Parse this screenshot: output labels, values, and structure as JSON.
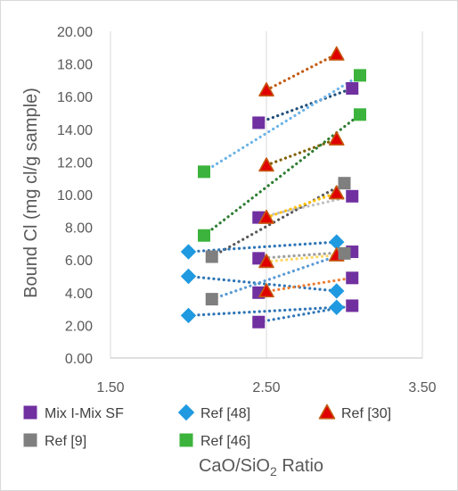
{
  "chart_data": {
    "type": "scatter",
    "title": "",
    "xlabel": "CaO/SiO",
    "xlabel_subscript": "2",
    "xlabel_suffix": " Ratio",
    "ylabel": "Bound Cl (mg cl/g sample)",
    "xlim": [
      1.5,
      3.5
    ],
    "ylim": [
      0,
      20
    ],
    "x_ticks": [
      "1.50",
      "2.50",
      "3.50"
    ],
    "y_ticks": [
      "0.00",
      "2.00",
      "4.00",
      "6.00",
      "8.00",
      "10.00",
      "12.00",
      "14.00",
      "16.00",
      "18.00",
      "20.00"
    ],
    "grid": "vertical",
    "legend_position": "bottom",
    "series": [
      {
        "name": "Mix I-Mix SF",
        "marker": "square",
        "color": "#7030a0",
        "points": [
          [
            2.45,
            14.4
          ],
          [
            2.45,
            8.6
          ],
          [
            2.45,
            6.1
          ],
          [
            2.45,
            4.0
          ],
          [
            2.45,
            2.2
          ],
          [
            3.05,
            16.5
          ],
          [
            3.05,
            9.9
          ],
          [
            3.05,
            6.5
          ],
          [
            3.05,
            4.9
          ],
          [
            3.05,
            3.2
          ]
        ]
      },
      {
        "name": "Ref [48]",
        "marker": "diamond",
        "color": "#1f9ae0",
        "points": [
          [
            2.0,
            6.5
          ],
          [
            2.0,
            5.0
          ],
          [
            2.0,
            2.6
          ],
          [
            2.95,
            7.1
          ],
          [
            2.95,
            4.1
          ],
          [
            2.95,
            3.1
          ]
        ]
      },
      {
        "name": "Ref [30]",
        "marker": "triangle",
        "color": "#e00000",
        "edge_color": "#c55a11",
        "points": [
          [
            2.5,
            16.4
          ],
          [
            2.5,
            11.8
          ],
          [
            2.5,
            8.6
          ],
          [
            2.5,
            5.9
          ],
          [
            2.5,
            4.1
          ],
          [
            2.95,
            18.6
          ],
          [
            2.95,
            13.4
          ],
          [
            2.95,
            10.1
          ],
          [
            2.95,
            6.3
          ]
        ]
      },
      {
        "name": "Ref [9]",
        "marker": "square",
        "color": "#7f7f7f",
        "points": [
          [
            2.15,
            6.2
          ],
          [
            2.15,
            3.6
          ],
          [
            3.0,
            10.7
          ],
          [
            3.0,
            6.4
          ]
        ]
      },
      {
        "name": "Ref [46]",
        "marker": "square",
        "color": "#3cb33c",
        "points": [
          [
            2.1,
            11.4
          ],
          [
            2.1,
            7.5
          ],
          [
            3.1,
            17.3
          ],
          [
            3.1,
            14.9
          ]
        ]
      }
    ],
    "trendlines": [
      {
        "from": [
          2.45,
          14.4
        ],
        "to": [
          3.05,
          16.5
        ],
        "color": "#1f4e79"
      },
      {
        "from": [
          2.5,
          16.4
        ],
        "to": [
          2.95,
          18.6
        ],
        "color": "#c55a11"
      },
      {
        "from": [
          2.1,
          11.4
        ],
        "to": [
          3.1,
          17.3
        ],
        "color": "#6cb4e8"
      },
      {
        "from": [
          2.5,
          11.8
        ],
        "to": [
          2.95,
          13.4
        ],
        "color": "#806000"
      },
      {
        "from": [
          2.1,
          7.5
        ],
        "to": [
          3.1,
          14.9
        ],
        "color": "#2e7d32"
      },
      {
        "from": [
          2.15,
          6.2
        ],
        "to": [
          3.0,
          10.7
        ],
        "color": "#595959"
      },
      {
        "from": [
          2.5,
          8.6
        ],
        "to": [
          2.95,
          10.1
        ],
        "color": "#ffc000"
      },
      {
        "from": [
          2.45,
          8.6
        ],
        "to": [
          3.05,
          9.9
        ],
        "color": "#bfbfbf"
      },
      {
        "from": [
          2.0,
          6.5
        ],
        "to": [
          2.95,
          7.1
        ],
        "color": "#2e75b6"
      },
      {
        "from": [
          2.5,
          5.9
        ],
        "to": [
          2.95,
          6.3
        ],
        "color": "#ffd966"
      },
      {
        "from": [
          2.45,
          6.1
        ],
        "to": [
          3.05,
          6.5
        ],
        "color": "#9e9e9e"
      },
      {
        "from": [
          2.0,
          5.0
        ],
        "to": [
          2.95,
          4.1
        ],
        "color": "#2e75b6"
      },
      {
        "from": [
          2.15,
          3.6
        ],
        "to": [
          3.0,
          6.4
        ],
        "color": "#5b9bd5"
      },
      {
        "from": [
          2.45,
          4.0
        ],
        "to": [
          3.05,
          4.9
        ],
        "color": "#ed7d31"
      },
      {
        "from": [
          2.0,
          2.6
        ],
        "to": [
          2.95,
          3.1
        ],
        "color": "#2e75b6"
      },
      {
        "from": [
          2.45,
          2.2
        ],
        "to": [
          3.05,
          3.2
        ],
        "color": "#2e75b6"
      }
    ]
  }
}
